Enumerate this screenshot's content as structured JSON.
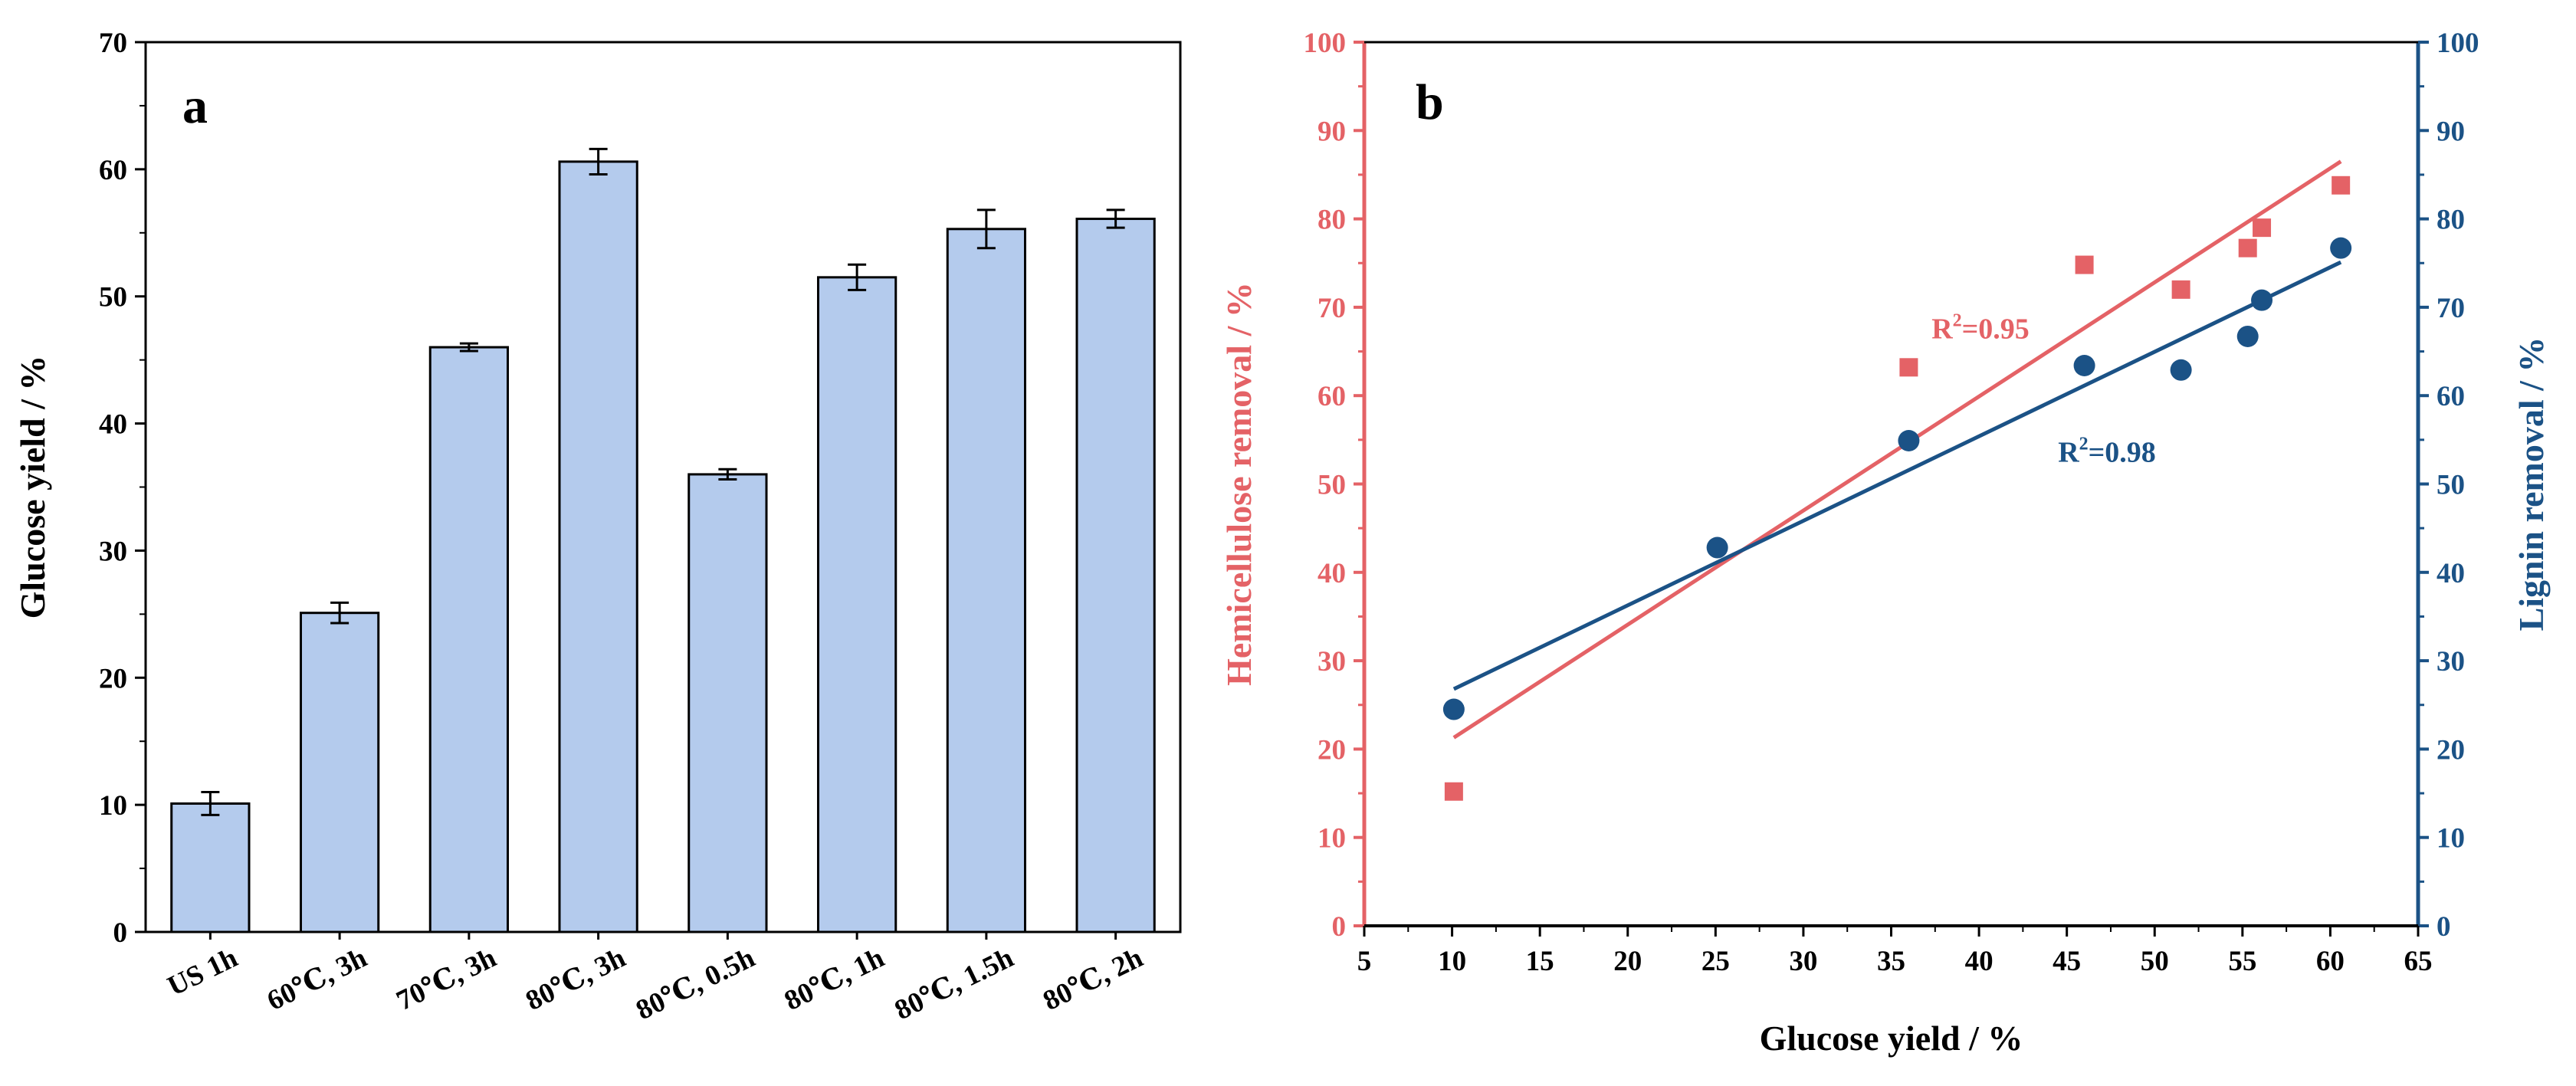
{
  "colors": {
    "bar_fill": "#b4cbed",
    "hemi": "#e46266",
    "lignin": "#1b5286",
    "axis_black": "#000000"
  },
  "chart_data": [
    {
      "panel": "a",
      "type": "bar",
      "title": "",
      "xlabel": "",
      "ylabel": "Glucose yield / %",
      "ylim": [
        0,
        70
      ],
      "yticks": [
        0,
        10,
        20,
        30,
        40,
        50,
        60,
        70
      ],
      "categories": [
        "US 1h",
        "60℃,  3h",
        "70℃,  3h",
        "80℃,  3h",
        "80℃,  0.5h",
        "80℃,  1h",
        "80℃,  1.5h",
        "80℃,  2h"
      ],
      "values": [
        10.1,
        25.1,
        46.0,
        60.6,
        36.0,
        51.5,
        55.3,
        56.1
      ],
      "errors": [
        0.9,
        0.8,
        0.3,
        1.0,
        0.4,
        1.0,
        1.5,
        0.7
      ]
    },
    {
      "panel": "b",
      "type": "scatter",
      "title": "",
      "xlabel": "Glucose yield / %",
      "ylabel_left": "Hemicellulose removal / %",
      "ylabel_right": "Lignin removal / %",
      "xlim": [
        5,
        65
      ],
      "xticks": [
        5,
        10,
        15,
        20,
        25,
        30,
        35,
        40,
        45,
        50,
        55,
        60,
        65
      ],
      "ylim": [
        0,
        100
      ],
      "yticks": [
        0,
        10,
        20,
        30,
        40,
        50,
        60,
        70,
        80,
        90,
        100
      ],
      "series": [
        {
          "name": "Hemicellulose removal",
          "axis": "left",
          "marker": "square",
          "x": [
            10.1,
            36.0,
            46.0,
            51.5,
            55.3,
            56.1,
            60.6
          ],
          "y": [
            15.2,
            63.2,
            74.8,
            72.0,
            76.7,
            79.0,
            83.8
          ],
          "fit": {
            "x": [
              10.1,
              60.6
            ],
            "y": [
              21.3,
              86.5
            ]
          },
          "annotation": {
            "prefix": "R",
            "sup": "2",
            "suffix": "=0.95",
            "x": 37.3,
            "y": 66.5
          }
        },
        {
          "name": "Lignin removal",
          "axis": "right",
          "marker": "circle",
          "x": [
            10.1,
            25.1,
            36.0,
            46.0,
            51.5,
            55.3,
            56.1,
            60.6
          ],
          "y": [
            24.5,
            42.8,
            54.9,
            63.4,
            62.9,
            66.7,
            70.8,
            76.7
          ],
          "fit": {
            "x": [
              10.1,
              60.6
            ],
            "y": [
              26.8,
              75.1
            ]
          },
          "annotation": {
            "prefix": "R",
            "sup": "2",
            "suffix": "=0.98",
            "x": 44.5,
            "y": 52.5
          }
        }
      ]
    }
  ]
}
